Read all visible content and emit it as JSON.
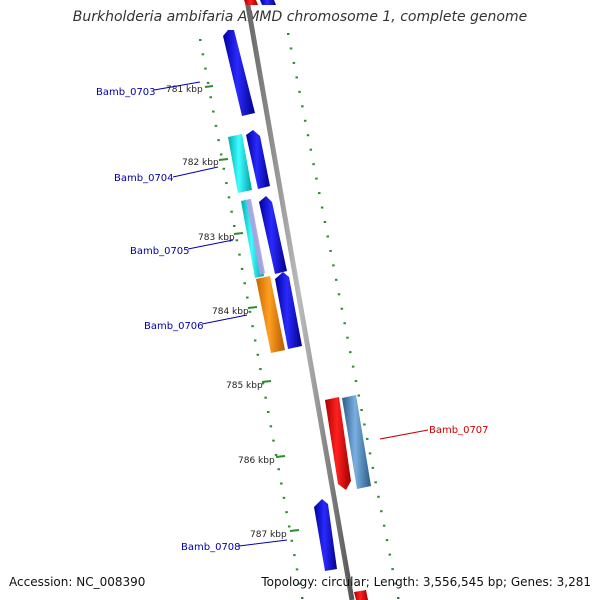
{
  "title": "Burkholderia ambifaria AMMD chromosome 1, complete genome",
  "accession": "Accession: NC_008390",
  "summary": "Topology: circular; Length: 3,556,545 bp; Genes: 3,281",
  "kbp_ticks": [
    "781 kbp",
    "782 kbp",
    "783 kbp",
    "784 kbp",
    "785 kbp",
    "786 kbp",
    "787 kbp"
  ],
  "gene_labels": [
    {
      "text": "Bamb_0703",
      "color": "#0000aa"
    },
    {
      "text": "Bamb_0704",
      "color": "#0000aa"
    },
    {
      "text": "Bamb_0705",
      "color": "#0000aa"
    },
    {
      "text": "Bamb_0706",
      "color": "#0000aa"
    },
    {
      "text": "Bamb_0707",
      "color": "#cc0000"
    },
    {
      "text": "Bamb_0708",
      "color": "#0000aa"
    }
  ],
  "colors": {
    "backbone": "#888888",
    "dotted_track": "#2e8b2e",
    "blue_gene": "#1a1aee",
    "cyan_gene": "#20e0e8",
    "orange_gene": "#ff8c00",
    "red_gene": "#ee1111",
    "steelblue_gene": "#4682b4"
  }
}
